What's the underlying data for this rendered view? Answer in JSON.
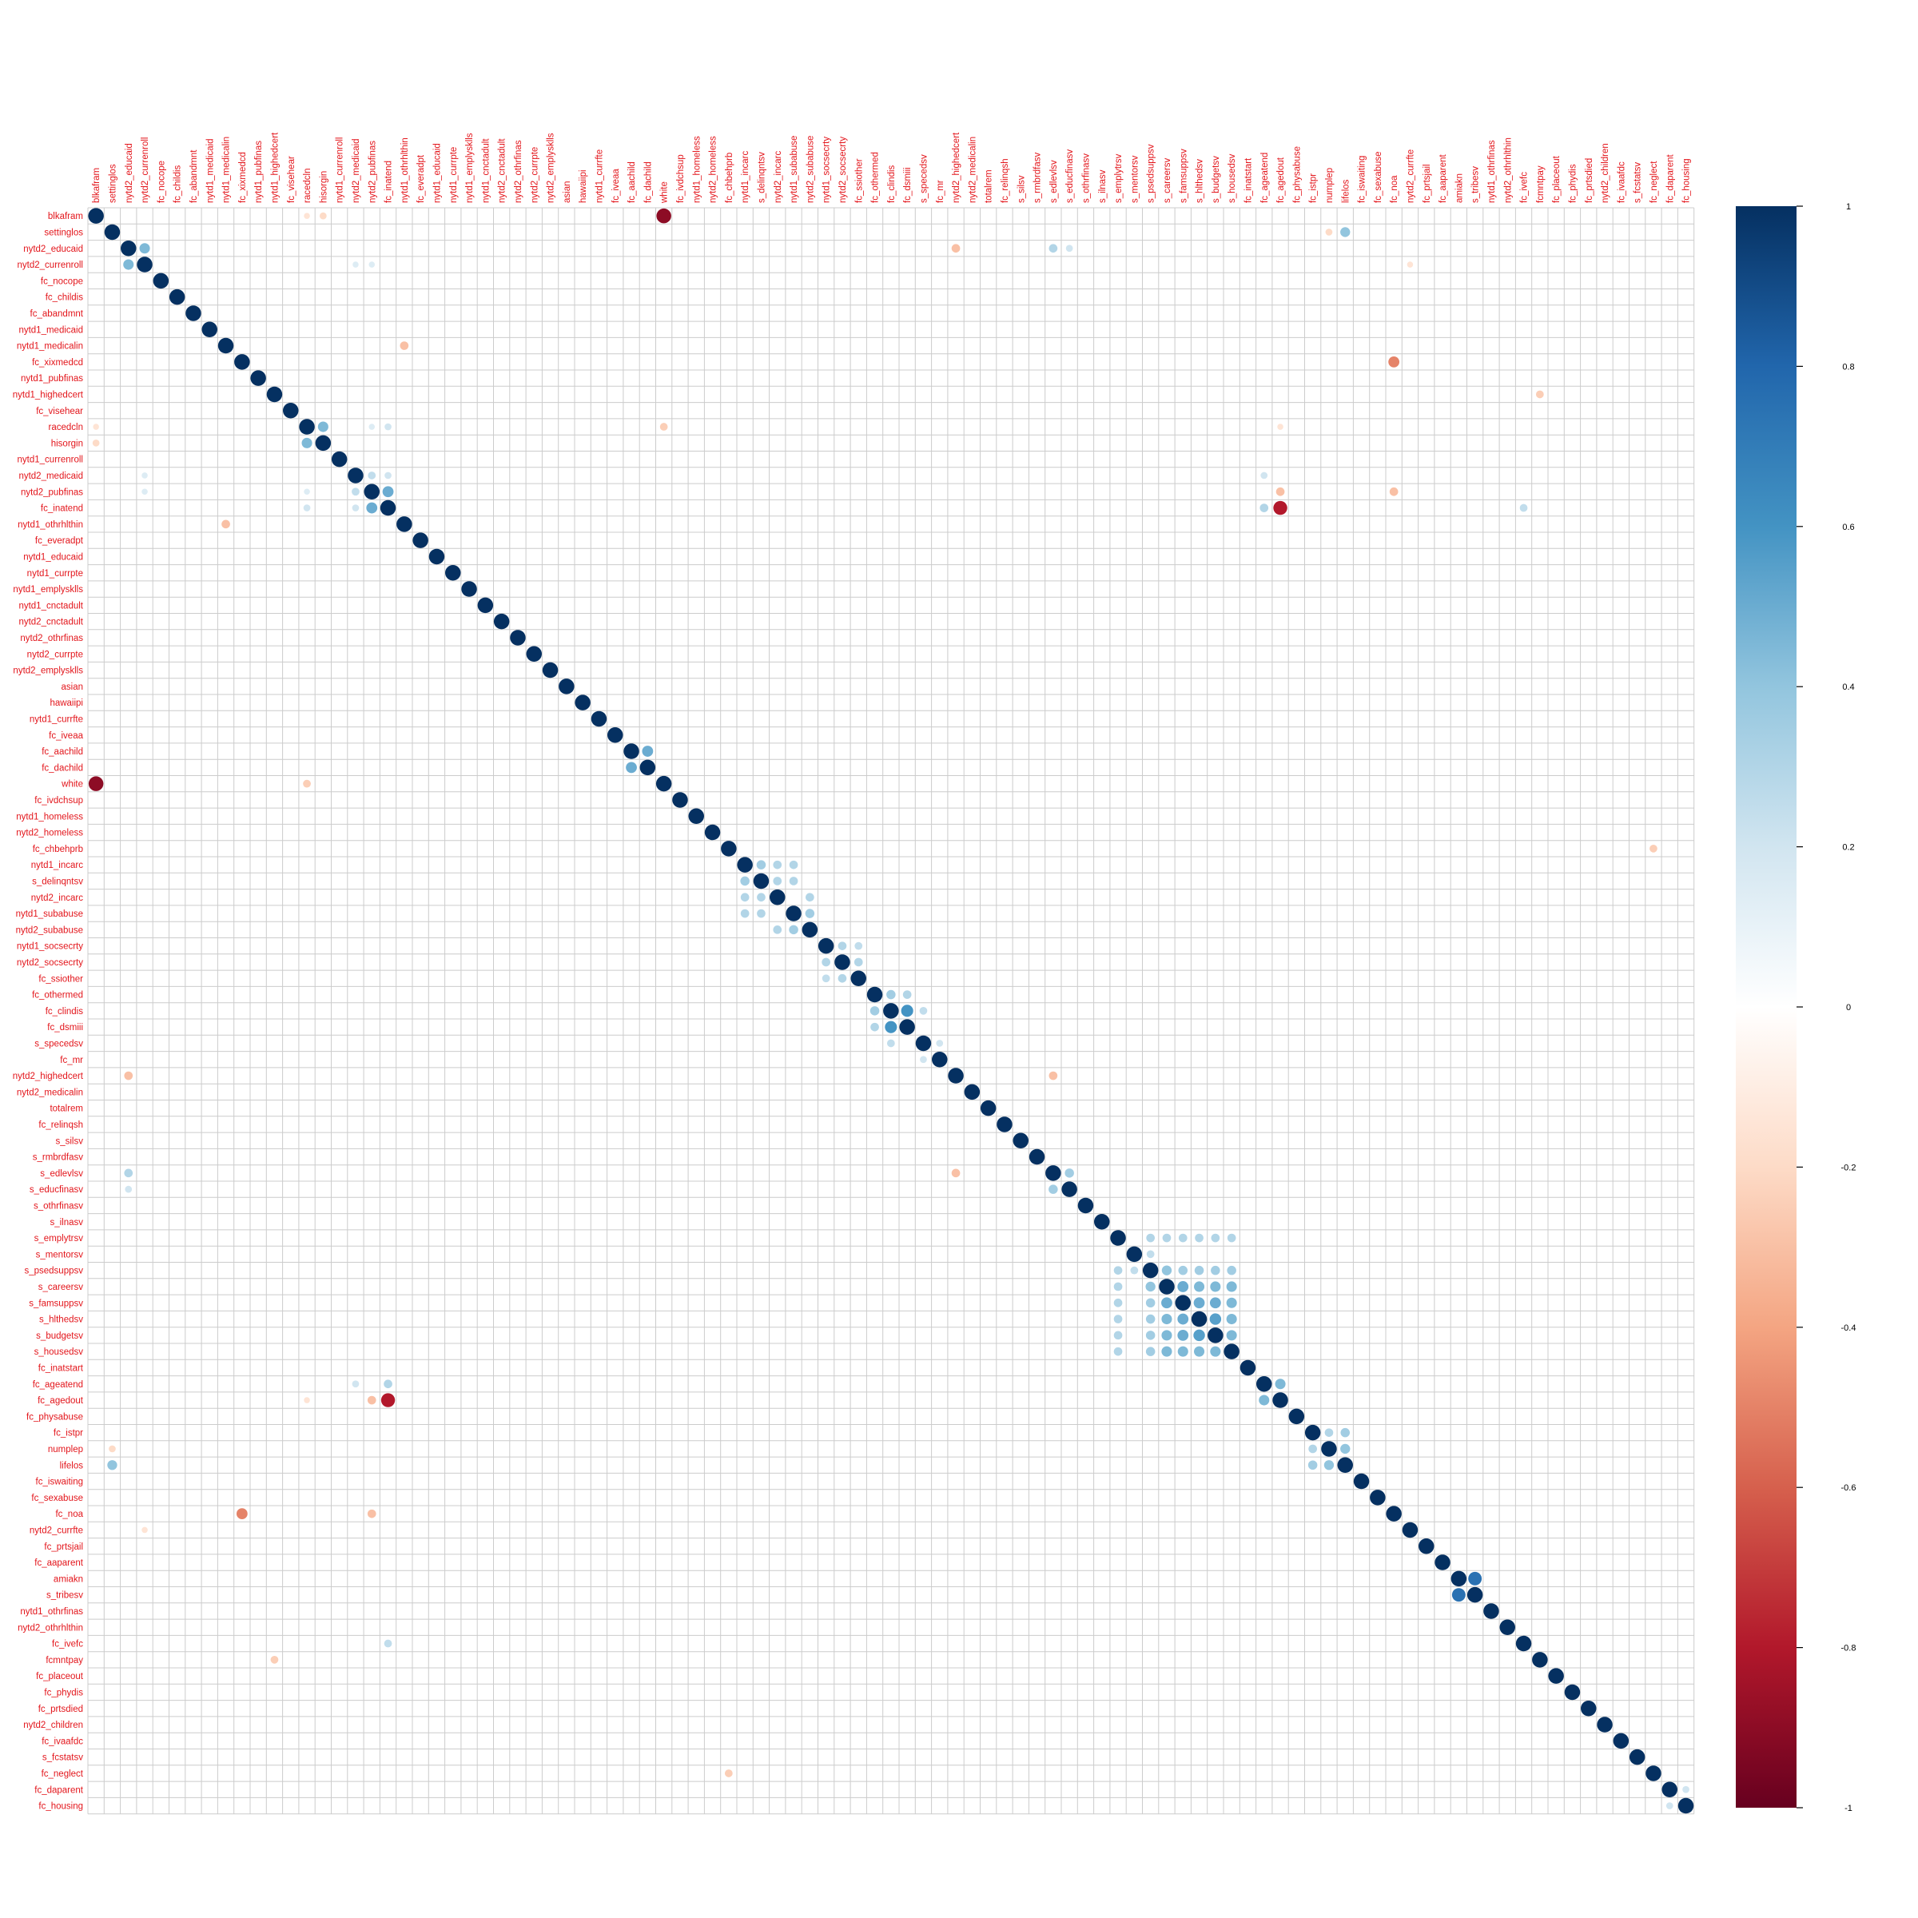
{
  "chart_data": {
    "type": "heatmap",
    "method": "circle",
    "title": "",
    "variables": [
      "blkafram",
      "settinglos",
      "nytd2_educaid",
      "nytd2_currenroll",
      "fc_nocope",
      "fc_childis",
      "fc_abandmnt",
      "nytd1_medicaid",
      "nytd1_medicalin",
      "fc_xixmedcd",
      "nytd1_pubfinas",
      "nytd1_highedcert",
      "fc_visehear",
      "racedcln",
      "hisorgin",
      "nytd1_currenroll",
      "nytd2_medicaid",
      "nytd2_pubfinas",
      "fc_inatend",
      "nytd1_othrhlthin",
      "fc_everadpt",
      "nytd1_educaid",
      "nytd1_currpte",
      "nytd1_emplysklls",
      "nytd1_cnctadult",
      "nytd2_cnctadult",
      "nytd2_othrfinas",
      "nytd2_currpte",
      "nytd2_emplysklls",
      "asian",
      "hawaiipi",
      "nytd1_currfte",
      "fc_iveaa",
      "fc_aachild",
      "fc_dachild",
      "white",
      "fc_ivdchsup",
      "nytd1_homeless",
      "nytd2_homeless",
      "fc_chbehprb",
      "nytd1_incarc",
      "s_delinqntsv",
      "nytd2_incarc",
      "nytd1_subabuse",
      "nytd2_subabuse",
      "nytd1_socsecrty",
      "nytd2_socsecrty",
      "fc_ssiother",
      "fc_othermed",
      "fc_clindis",
      "fc_dsmiii",
      "s_specedsv",
      "fc_mr",
      "nytd2_highedcert",
      "nytd2_medicalin",
      "totalrem",
      "fc_relinqsh",
      "s_silsv",
      "s_rmbrdfasv",
      "s_edlevlsv",
      "s_educfinasv",
      "s_othrfinasv",
      "s_ilnasv",
      "s_emplytrsv",
      "s_mentorsv",
      "s_psedsuppsv",
      "s_careersv",
      "s_famsuppsv",
      "s_hlthedsv",
      "s_budgetsv",
      "s_housedsv",
      "fc_inatstart",
      "fc_ageatend",
      "fc_agedout",
      "fc_physabuse",
      "fc_istpr",
      "numplep",
      "lifelos",
      "fc_iswaiting",
      "fc_sexabuse",
      "fc_noa",
      "nytd2_currfte",
      "fc_prtsjail",
      "fc_aaparent",
      "amiakn",
      "s_tribesv",
      "nytd1_othrfinas",
      "nytd2_othrhlthin",
      "fc_ivefc",
      "fcmntpay",
      "fc_placeout",
      "fc_phydis",
      "fc_prtsdied",
      "nytd2_children",
      "fc_ivaafdc",
      "s_fcstatsv",
      "fc_neglect",
      "fc_daparent",
      "fc_housing"
    ],
    "correlations": [
      [
        "blkafram",
        "white",
        -0.9
      ],
      [
        "settinglos",
        "lifelos",
        0.4
      ],
      [
        "settinglos",
        "numplep",
        -0.2
      ],
      [
        "nytd2_educaid",
        "nytd2_currenroll",
        0.45
      ],
      [
        "nytd2_educaid",
        "nytd2_highedcert",
        -0.3
      ],
      [
        "nytd2_educaid",
        "s_edlevlsv",
        0.3
      ],
      [
        "nytd2_educaid",
        "s_educfinasv",
        0.2
      ],
      [
        "nytd2_currenroll",
        "nytd2_medicaid",
        0.15
      ],
      [
        "nytd2_currenroll",
        "nytd2_pubfinas",
        0.15
      ],
      [
        "nytd2_currenroll",
        "nytd2_currfte",
        -0.15
      ],
      [
        "nytd1_medicalin",
        "nytd1_othrhlthin",
        -0.3
      ],
      [
        "fc_xixmedcd",
        "fc_noa",
        -0.5
      ],
      [
        "nytd1_highedcert",
        "fcmntpay",
        -0.25
      ],
      [
        "racedcln",
        "hisorgin",
        0.45
      ],
      [
        "racedcln",
        "white",
        -0.25
      ],
      [
        "racedcln",
        "fc_inatend",
        0.2
      ],
      [
        "racedcln",
        "blkafram",
        -0.15
      ],
      [
        "racedcln",
        "nytd2_pubfinas",
        0.15
      ],
      [
        "racedcln",
        "fc_agedout",
        -0.15
      ],
      [
        "hisorgin",
        "blkafram",
        -0.2
      ],
      [
        "nytd2_medicaid",
        "nytd2_pubfinas",
        0.25
      ],
      [
        "nytd2_medicaid",
        "fc_inatend",
        0.2
      ],
      [
        "nytd2_medicaid",
        "fc_ageatend",
        0.2
      ],
      [
        "nytd2_pubfinas",
        "fc_inatend",
        0.5
      ],
      [
        "nytd2_pubfinas",
        "fc_agedout",
        -0.3
      ],
      [
        "nytd2_pubfinas",
        "fc_noa",
        -0.3
      ],
      [
        "fc_inatend",
        "fc_ageatend",
        0.3
      ],
      [
        "fc_inatend",
        "fc_agedout",
        -0.8
      ],
      [
        "fc_inatend",
        "fc_ivefc",
        0.25
      ],
      [
        "fc_aachild",
        "fc_dachild",
        0.5
      ],
      [
        "fc_chbehprb",
        "fc_neglect",
        -0.25
      ],
      [
        "nytd1_incarc",
        "s_delinqntsv",
        0.35
      ],
      [
        "nytd1_incarc",
        "nytd2_incarc",
        0.3
      ],
      [
        "nytd1_incarc",
        "nytd1_subabuse",
        0.3
      ],
      [
        "s_delinqntsv",
        "nytd2_incarc",
        0.3
      ],
      [
        "s_delinqntsv",
        "nytd1_subabuse",
        0.3
      ],
      [
        "nytd2_incarc",
        "nytd2_subabuse",
        0.3
      ],
      [
        "nytd1_subabuse",
        "nytd2_subabuse",
        0.35
      ],
      [
        "nytd1_socsecrty",
        "nytd2_socsecrty",
        0.3
      ],
      [
        "nytd1_socsecrty",
        "fc_ssiother",
        0.25
      ],
      [
        "nytd2_socsecrty",
        "fc_ssiother",
        0.3
      ],
      [
        "fc_othermed",
        "fc_clindis",
        0.35
      ],
      [
        "fc_othermed",
        "fc_dsmiii",
        0.3
      ],
      [
        "fc_clindis",
        "fc_dsmiii",
        0.6
      ],
      [
        "fc_clindis",
        "s_specedsv",
        0.25
      ],
      [
        "s_specedsv",
        "fc_mr",
        0.2
      ],
      [
        "nytd2_highedcert",
        "s_edlevlsv",
        -0.3
      ],
      [
        "s_edlevlsv",
        "s_educfinasv",
        0.35
      ],
      [
        "s_psedsuppsv",
        "s_careersv",
        0.4
      ],
      [
        "s_psedsuppsv",
        "s_famsuppsv",
        0.35
      ],
      [
        "s_psedsuppsv",
        "s_hlthedsv",
        0.35
      ],
      [
        "s_psedsuppsv",
        "s_budgetsv",
        0.35
      ],
      [
        "s_psedsuppsv",
        "s_housedsv",
        0.35
      ],
      [
        "s_careersv",
        "s_famsuppsv",
        0.5
      ],
      [
        "s_careersv",
        "s_hlthedsv",
        0.45
      ],
      [
        "s_careersv",
        "s_budgetsv",
        0.45
      ],
      [
        "s_careersv",
        "s_housedsv",
        0.45
      ],
      [
        "s_famsuppsv",
        "s_hlthedsv",
        0.5
      ],
      [
        "s_famsuppsv",
        "s_budgetsv",
        0.5
      ],
      [
        "s_famsuppsv",
        "s_housedsv",
        0.45
      ],
      [
        "s_hlthedsv",
        "s_budgetsv",
        0.55
      ],
      [
        "s_hlthedsv",
        "s_housedsv",
        0.45
      ],
      [
        "s_budgetsv",
        "s_housedsv",
        0.45
      ],
      [
        "s_emplytrsv",
        "s_psedsuppsv",
        0.3
      ],
      [
        "s_emplytrsv",
        "s_careersv",
        0.3
      ],
      [
        "s_emplytrsv",
        "s_famsuppsv",
        0.3
      ],
      [
        "s_emplytrsv",
        "s_hlthedsv",
        0.3
      ],
      [
        "s_emplytrsv",
        "s_budgetsv",
        0.3
      ],
      [
        "s_emplytrsv",
        "s_housedsv",
        0.3
      ],
      [
        "s_mentorsv",
        "s_psedsuppsv",
        0.25
      ],
      [
        "fc_ageatend",
        "fc_agedout",
        0.45
      ],
      [
        "fc_istpr",
        "numplep",
        0.3
      ],
      [
        "fc_istpr",
        "lifelos",
        0.35
      ],
      [
        "numplep",
        "lifelos",
        0.4
      ],
      [
        "amiakn",
        "s_tribesv",
        0.75
      ],
      [
        "fc_daparent",
        "fc_housing",
        0.2
      ]
    ],
    "colorbar": {
      "min": -1,
      "max": 1,
      "ticks": [
        "1",
        "0.8",
        "0.6",
        "0.4",
        "0.2",
        "0",
        "-0.2",
        "-0.4",
        "-0.6",
        "-0.8",
        "-1"
      ],
      "tick_values": [
        1,
        0.8,
        0.6,
        0.4,
        0.2,
        0,
        -0.2,
        -0.4,
        -0.6,
        -0.8,
        -1
      ],
      "colors": [
        "#67001F",
        "#B2182B",
        "#D6604D",
        "#F4A582",
        "#FDDBC7",
        "#FFFFFF",
        "#D1E5F0",
        "#92C5DE",
        "#4393C3",
        "#2166AC",
        "#053061"
      ]
    },
    "label_color": "#e3151b",
    "grid_color": "#cccccc"
  }
}
